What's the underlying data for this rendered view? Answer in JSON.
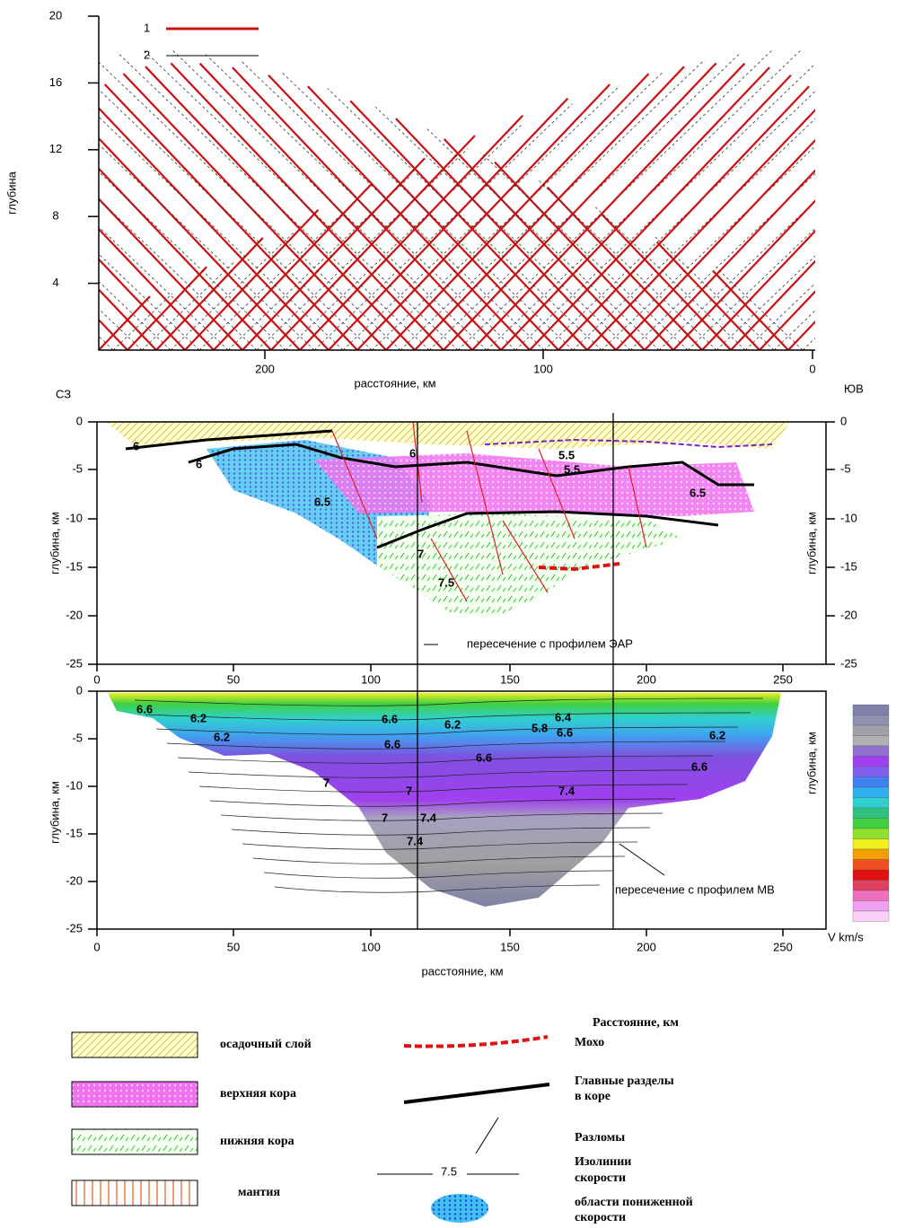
{
  "top_panel": {
    "legend": [
      "1",
      "2"
    ],
    "y_label": "глубина",
    "y_ticks": [
      "20",
      "16",
      "12",
      "8",
      "4"
    ],
    "x_ticks": [
      "200",
      "100",
      "0"
    ],
    "x_label": "расстояние, км"
  },
  "middle_panel": {
    "left_corner": "СЗ",
    "right_corner": "ЮВ",
    "y_label": "глубина, км",
    "y_ticks": [
      "0",
      "-5",
      "-10",
      "-15",
      "-20",
      "-25"
    ],
    "right_y_label": "глубина, км",
    "right_y_ticks": [
      "0",
      "-5",
      "-10",
      "-15",
      "-20",
      "-25"
    ],
    "x_ticks": [
      "0",
      "50",
      "100",
      "150",
      "200",
      "250"
    ],
    "annotation": "пересечение с профилем ЭАР",
    "contour_labels": [
      "6",
      "6",
      "6",
      "6.5",
      "5.5",
      "5.5",
      "6.5",
      "7",
      "7.5"
    ]
  },
  "bottom_panel": {
    "y_label": "глубина, км",
    "y_ticks": [
      "0",
      "-5",
      "-10",
      "-15",
      "-20",
      "-25"
    ],
    "x_ticks": [
      "0",
      "50",
      "100",
      "150",
      "200",
      "250"
    ],
    "x_label": "расстояние, км",
    "annotation": "пересечение с профилем МВ",
    "colorbar_label": "глубина, км",
    "colorbar_unit": "V km/s",
    "contour_labels": [
      "6.6",
      "6.2",
      "6.2",
      "6.6",
      "6.2",
      "6.6",
      "5.8",
      "6.4",
      "6.2",
      "6.6",
      "6.6",
      "6.6",
      "7",
      "7",
      "7",
      "7.4",
      "7.4",
      "7.4"
    ]
  },
  "legend": {
    "header": "Расстояние, км",
    "fills": [
      "осадочный слой",
      "верхняя кора",
      "нижняя кора",
      "мантия"
    ],
    "lines": [
      {
        "label": [
          "Мохо"
        ]
      },
      {
        "label": [
          "Главные разделы",
          "в коре"
        ]
      },
      {
        "label": [
          "Разломы"
        ]
      },
      {
        "label": [
          "Изолинии",
          "скорости"
        ],
        "sample": "7.5"
      },
      {
        "label": [
          "области пониженной",
          "скорости"
        ]
      }
    ]
  }
}
